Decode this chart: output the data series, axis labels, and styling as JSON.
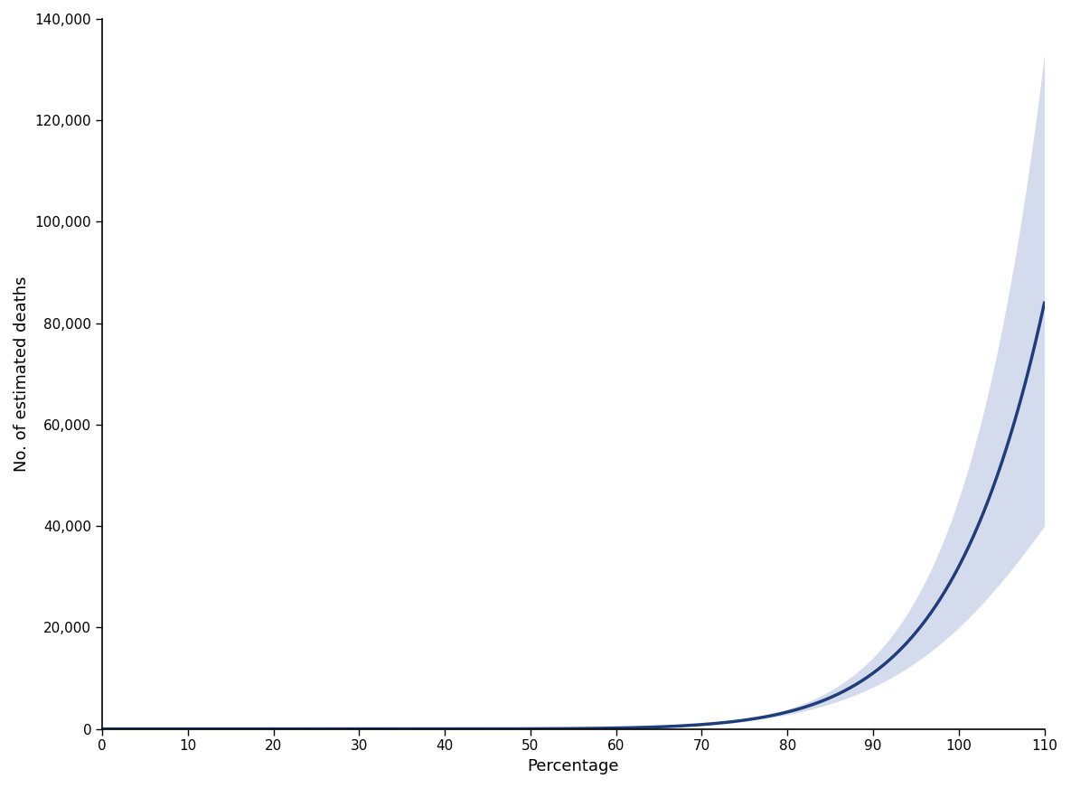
{
  "title": "",
  "xlabel": "Percentage",
  "ylabel": "No. of estimated deaths",
  "xlim": [
    0,
    110
  ],
  "ylim": [
    0,
    140000
  ],
  "xticks": [
    0,
    10,
    20,
    30,
    40,
    50,
    60,
    70,
    80,
    90,
    100,
    110
  ],
  "yticks": [
    0,
    20000,
    40000,
    60000,
    80000,
    100000,
    120000,
    140000
  ],
  "line_color": "#1f3d7a",
  "ci_color": "#b0bedd",
  "line_width": 2.5,
  "background_color": "#ffffff",
  "x_start": 0,
  "x_end": 110,
  "ci_alpha": 0.55,
  "figsize": [
    11.85,
    8.72
  ],
  "dpi": 100,
  "mean_at_100": 32000,
  "mean_at_110": 84000,
  "upper_at_110": 133000,
  "lower_at_110": 40000,
  "ci_start_x": 45
}
